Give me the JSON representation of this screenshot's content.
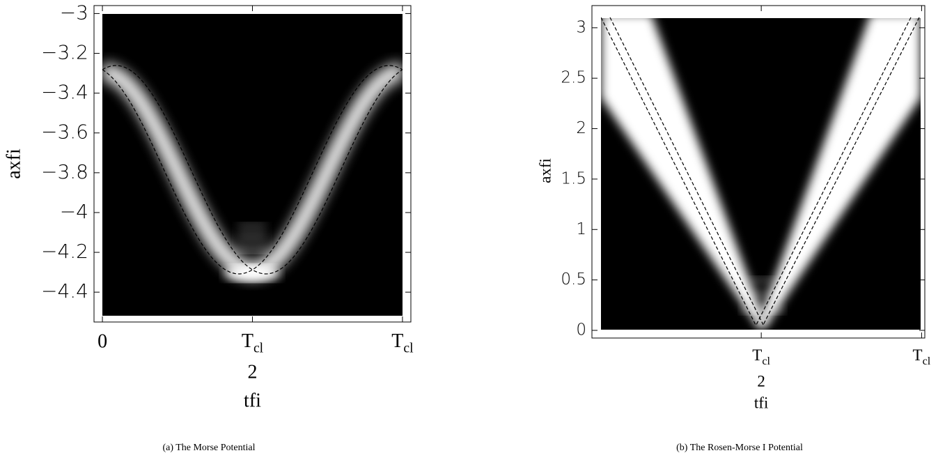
{
  "figure": {
    "panels": [
      {
        "ylabel": "axfi",
        "xlabel": "tfi",
        "xlim": [
          -0.028,
          1.028
        ],
        "ylim": [
          -4.55,
          -2.96
        ],
        "xticks": [
          {
            "value": 0,
            "label": "0"
          },
          {
            "value": 0.5,
            "symbol": "T",
            "subscript": "cl",
            "denominator": "2"
          },
          {
            "value": 1,
            "symbol": "T",
            "subscript": "cl"
          }
        ],
        "yticks": [
          {
            "value": -3,
            "label": "−3"
          },
          {
            "value": -3.2,
            "label": "−3.2"
          },
          {
            "value": -3.4,
            "label": "−3.4"
          },
          {
            "value": -3.6,
            "label": "−3.6"
          },
          {
            "value": -3.8,
            "label": "−3.8"
          },
          {
            "value": -4,
            "label": "−4"
          },
          {
            "value": -4.2,
            "label": "−4.2"
          },
          {
            "value": -4.4,
            "label": "−4.4"
          }
        ],
        "caption": "(a) The Morse Potential"
      },
      {
        "ylabel": "axfi",
        "xlabel": "tfi",
        "xlim": [
          -0.028,
          1.01
        ],
        "ylim": [
          -0.076,
          3.22
        ],
        "xticks": [
          {
            "value": 0.5,
            "symbol": "T",
            "subscript": "cl",
            "denominator": "2"
          },
          {
            "value": 1,
            "symbol": "T",
            "subscript": "cl"
          }
        ],
        "yticks": [
          0,
          0.5,
          1,
          1.5,
          2,
          2.5,
          3
        ],
        "caption": "(b) The Rosen-Morse I Potential"
      }
    ]
  }
}
